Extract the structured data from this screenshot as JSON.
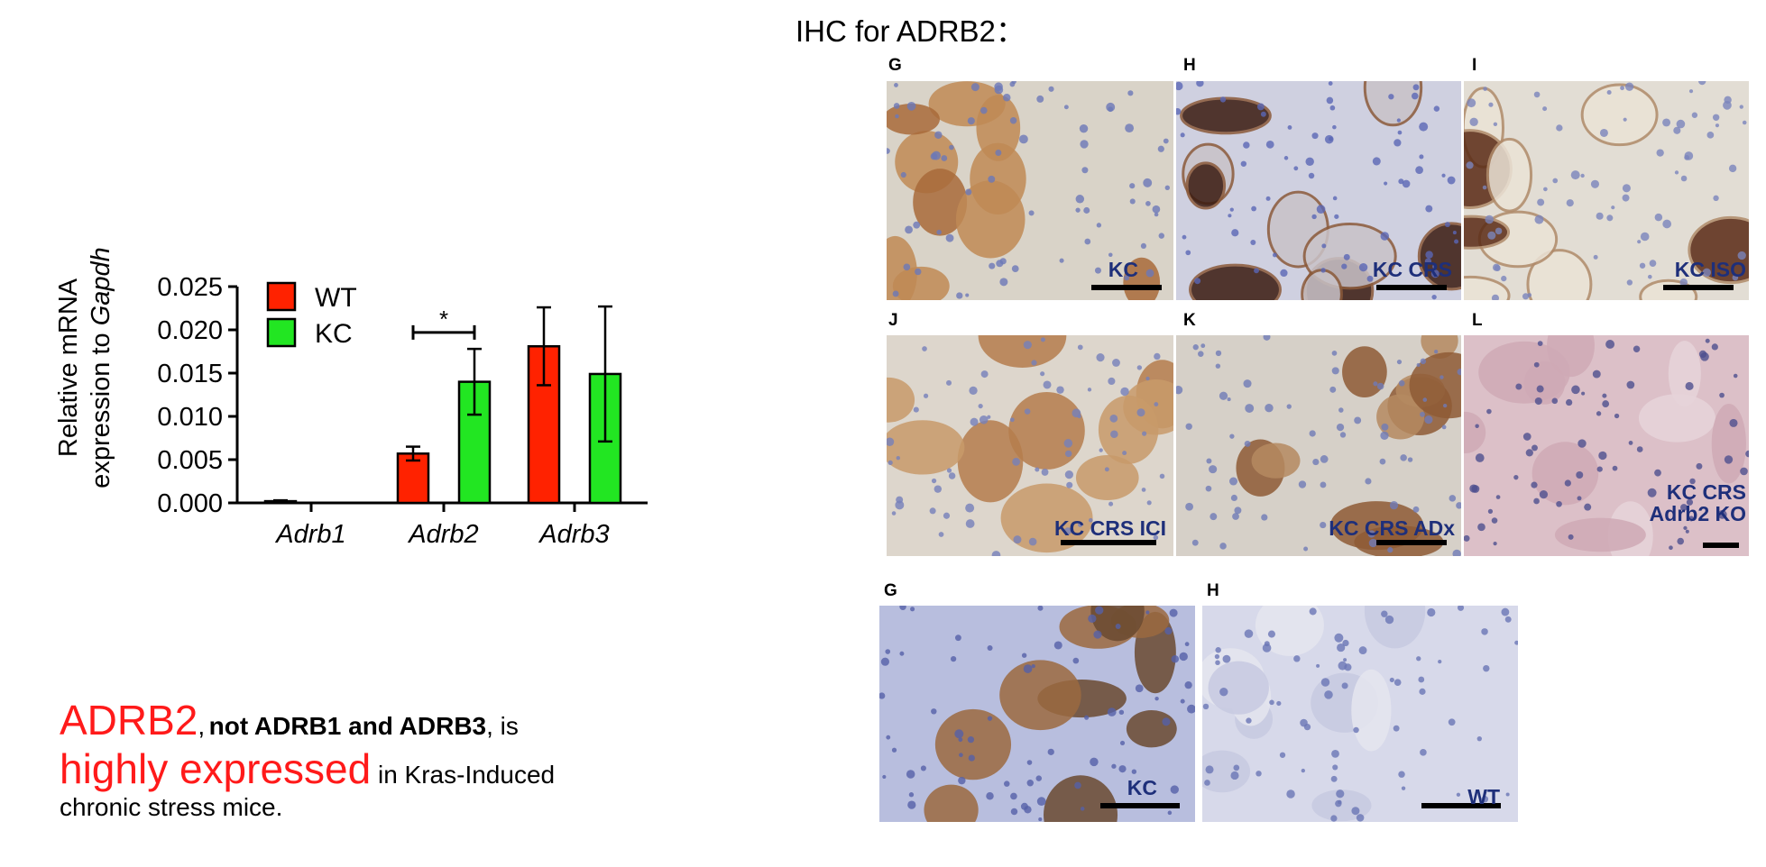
{
  "ihc_title": "IHC for ADRB2：",
  "panels": [
    {
      "letter": "G",
      "caption": "KC",
      "style": "acinar-brown"
    },
    {
      "letter": "H",
      "caption": "KC CRS",
      "style": "ductal-dark"
    },
    {
      "letter": "I",
      "caption": "KC ISO",
      "style": "ductal-rings"
    },
    {
      "letter": "J",
      "caption": "KC CRS ICI",
      "style": "acinar-light"
    },
    {
      "letter": "K",
      "caption": "KC CRS ADx",
      "style": "acinar-mixed"
    },
    {
      "letter": "L",
      "caption": "KC CRS\nAdrb2 KO",
      "style": "pink-negative"
    },
    {
      "letter": "G",
      "caption": "KC",
      "style": "acinar-lowmag"
    },
    {
      "letter": "H",
      "caption": "WT",
      "style": "blue-negative"
    }
  ],
  "colors": {
    "wt": "#ff2200",
    "kc": "#22e622",
    "caption": "#1e2f7a",
    "highlight": "#ff1a1a"
  },
  "chart_data": {
    "type": "bar",
    "categories": [
      "Adrb1",
      "Adrb2",
      "Adrb3"
    ],
    "series": [
      {
        "name": "WT",
        "values": [
          0.0002,
          0.0057,
          0.0181
        ],
        "errors": [
          0.0001,
          0.0008,
          0.0045
        ]
      },
      {
        "name": "KC",
        "values": [
          0,
          0.014,
          0.0149
        ],
        "errors": [
          0,
          0.0038,
          0.0078
        ]
      }
    ],
    "ylabel_line1": "Relative mRNA",
    "ylabel_line2_prefix": "expression to ",
    "ylabel_line2_italic": "Gapdh",
    "ylim": [
      0,
      0.025
    ],
    "yticks": [
      "0.000",
      "0.005",
      "0.010",
      "0.015",
      "0.020",
      "0.025"
    ],
    "significance": {
      "between": "Adrb2",
      "label": "*"
    },
    "legend_placement": "top-left"
  },
  "summary": {
    "part1_red": "ADRB2",
    "part1_rest_comma": ",",
    "part1_bold": "not  ADRB1 and ADRB3",
    "part1_tail": ", is",
    "part2_red": "highly expressed",
    "part2_tail": " in  Kras-Induced",
    "part3": "chronic stress mice."
  }
}
